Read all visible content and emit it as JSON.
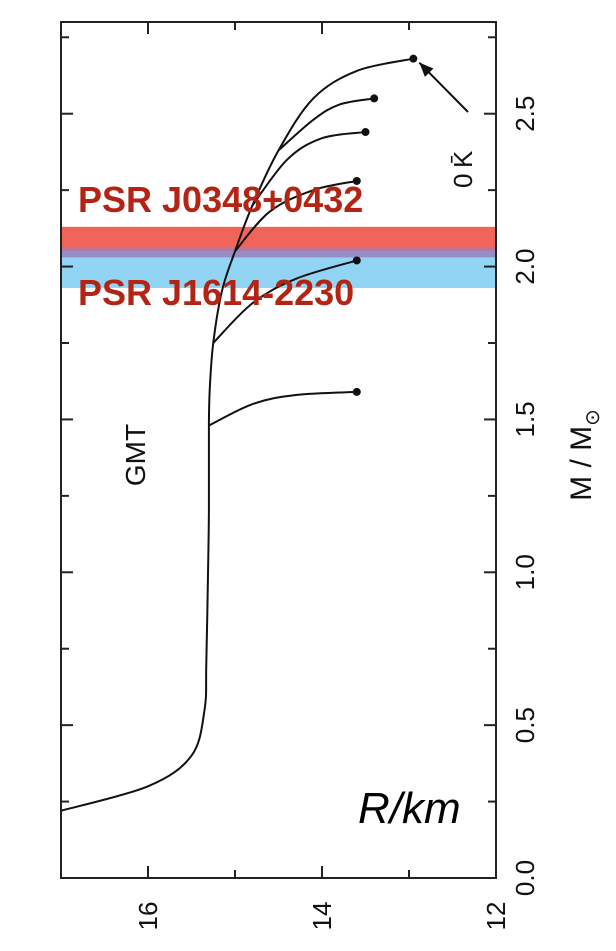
{
  "chart_data": {
    "type": "line",
    "orientation": "rotated 90 degrees (mass axis runs vertically on the right, radius axis runs horizontally at the bottom)",
    "frame_label": "GMT",
    "mass_axis": {
      "label": "M / M",
      "label_subscript": "⊙",
      "range": [
        0.0,
        2.8
      ],
      "ticks": [
        {
          "value": 0.0,
          "label": "0.0"
        },
        {
          "value": 0.5,
          "label": "0.5"
        },
        {
          "value": 1.0,
          "label": "1.0"
        },
        {
          "value": 1.5,
          "label": "1.5"
        },
        {
          "value": 2.0,
          "label": "2.0"
        },
        {
          "value": 2.5,
          "label": "2.5"
        }
      ]
    },
    "radius_axis": {
      "label": "R/km",
      "range": [
        17.0,
        12.0
      ],
      "ticks": [
        {
          "value": 16,
          "label": "16"
        },
        {
          "value": 14,
          "label": "14"
        },
        {
          "value": 12,
          "label": "12"
        }
      ]
    },
    "series": [
      {
        "role": "main branch",
        "points": [
          [
            17.0,
            0.22
          ],
          [
            16.0,
            0.3
          ],
          [
            15.5,
            0.4
          ],
          [
            15.35,
            0.55
          ],
          [
            15.33,
            0.7
          ],
          [
            15.31,
            1.0
          ],
          [
            15.3,
            1.2
          ],
          [
            15.3,
            1.48
          ],
          [
            15.29,
            1.6
          ],
          [
            15.25,
            1.75
          ],
          [
            15.15,
            1.92
          ],
          [
            15.0,
            2.05
          ],
          [
            14.8,
            2.2
          ],
          [
            14.5,
            2.38
          ],
          [
            14.1,
            2.55
          ],
          [
            13.6,
            2.64
          ],
          [
            12.95,
            2.68
          ]
        ],
        "endpoint": [
          12.95,
          2.68
        ]
      },
      {
        "role": "branch",
        "points": [
          [
            15.3,
            1.48
          ],
          [
            14.8,
            1.55
          ],
          [
            14.3,
            1.58
          ],
          [
            13.6,
            1.59
          ]
        ],
        "endpoint": [
          13.6,
          1.59
        ]
      },
      {
        "role": "branch",
        "points": [
          [
            15.25,
            1.75
          ],
          [
            14.8,
            1.88
          ],
          [
            14.3,
            1.96
          ],
          [
            13.6,
            2.02
          ]
        ],
        "endpoint": [
          13.6,
          2.02
        ]
      },
      {
        "role": "branch",
        "points": [
          [
            15.0,
            2.05
          ],
          [
            14.6,
            2.18
          ],
          [
            14.1,
            2.25
          ],
          [
            13.6,
            2.28
          ]
        ],
        "endpoint": [
          13.6,
          2.28
        ]
      },
      {
        "role": "branch",
        "points": [
          [
            14.8,
            2.2
          ],
          [
            14.4,
            2.35
          ],
          [
            14.0,
            2.42
          ],
          [
            13.5,
            2.44
          ]
        ],
        "endpoint": [
          13.5,
          2.44
        ]
      },
      {
        "role": "branch",
        "points": [
          [
            14.5,
            2.38
          ],
          [
            14.1,
            2.48
          ],
          [
            13.8,
            2.53
          ],
          [
            13.4,
            2.55
          ]
        ],
        "endpoint": [
          13.4,
          2.55
        ]
      }
    ],
    "annotation": {
      "text": "K̄",
      "partial_text": "0",
      "arrow_to": [
        12.95,
        2.68
      ]
    },
    "bands": [
      {
        "label": "PSR J0348+0432",
        "mass_range": [
          2.05,
          2.13
        ],
        "color": "#ef5c50"
      },
      {
        "label": "PSR J1614-2230",
        "mass_range": [
          1.93,
          2.05
        ],
        "color": "#8cd2f3"
      },
      {
        "label": "",
        "mass_range": [
          2.03,
          2.06
        ],
        "color": "#9a7fbb"
      }
    ]
  }
}
